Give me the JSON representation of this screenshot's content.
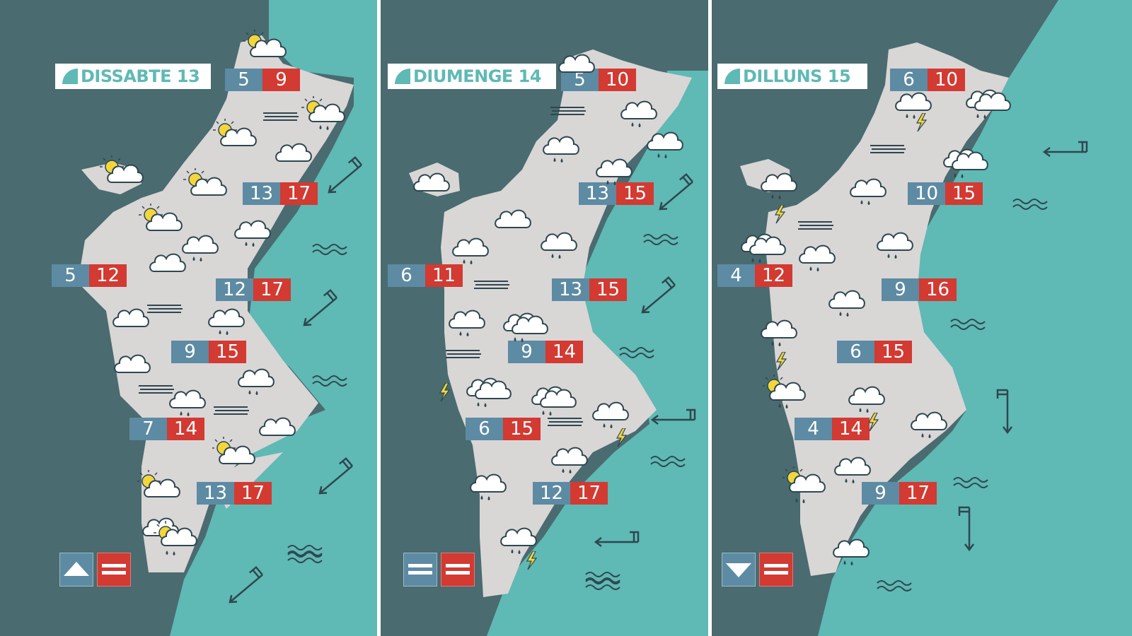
{
  "colors": {
    "land": "#d9d6d6",
    "sea": "#5fb9b5",
    "background": "#4a6b70",
    "min_box": "#5d8ba3",
    "max_box": "#d23a32",
    "title_text": "#5fb9b5"
  },
  "panels": [
    {
      "title": "DISSABTE 13",
      "temps": [
        {
          "min": "5",
          "max": "9"
        },
        {
          "min": "13",
          "max": "17"
        },
        {
          "min": "5",
          "max": "12"
        },
        {
          "min": "12",
          "max": "17"
        },
        {
          "min": "9",
          "max": "15"
        },
        {
          "min": "7",
          "max": "14"
        },
        {
          "min": "13",
          "max": "17"
        }
      ],
      "trend_min": "rising-icon",
      "trend_max": "stable-icon"
    },
    {
      "title": "DIUMENGE 14",
      "temps": [
        {
          "min": "5",
          "max": "10"
        },
        {
          "min": "13",
          "max": "15"
        },
        {
          "min": "6",
          "max": "11"
        },
        {
          "min": "13",
          "max": "15"
        },
        {
          "min": "9",
          "max": "14"
        },
        {
          "min": "6",
          "max": "15"
        },
        {
          "min": "12",
          "max": "17"
        }
      ],
      "trend_min": "stable-icon",
      "trend_max": "stable-icon"
    },
    {
      "title": "DILLUNS 15",
      "temps": [
        {
          "min": "6",
          "max": "10"
        },
        {
          "min": "10",
          "max": "15"
        },
        {
          "min": "4",
          "max": "12"
        },
        {
          "min": "9",
          "max": "16"
        },
        {
          "min": "6",
          "max": "15"
        },
        {
          "min": "4",
          "max": "14"
        },
        {
          "min": "9",
          "max": "17"
        }
      ],
      "trend_min": "falling-icon",
      "trend_max": "stable-icon"
    }
  ]
}
